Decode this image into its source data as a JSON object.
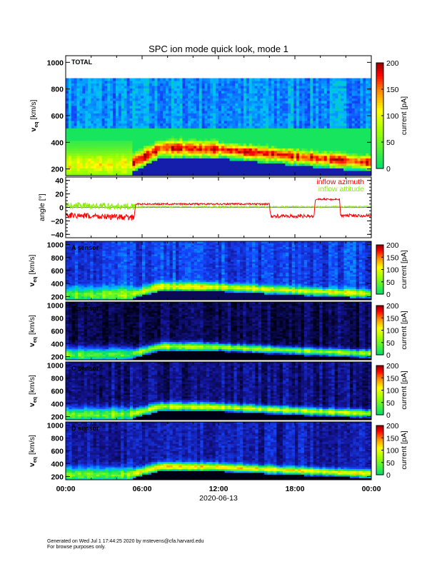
{
  "chart_data": {
    "type": "heatmap",
    "title": "SPC ion mode quick look, mode 1",
    "xlabel": "2020-06-13",
    "x_ticks": [
      "00:00",
      "06:00",
      "12:00",
      "18:00",
      "00:00"
    ],
    "xlim_hours": [
      0,
      24
    ],
    "panels": [
      {
        "label": "TOTAL",
        "ylabel": "v",
        "ylabel_sub": "eq",
        "ylabel_unit": " [km/s]",
        "ylim": [
          150,
          1050
        ],
        "yticks": [
          200,
          400,
          600,
          800,
          1000
        ],
        "cbar_label": "current [pA]",
        "cbar_ticks": [
          0,
          50,
          100,
          150,
          200
        ],
        "background": -0.3,
        "peak_amp": 0.9,
        "data_ceiling": 880
      },
      {
        "label": "A sensor",
        "ylabel": "v",
        "ylabel_sub": "eq",
        "ylabel_unit": " [km/s]",
        "ylim": [
          150,
          1050
        ],
        "yticks": [
          200,
          400,
          600,
          800,
          1000
        ],
        "cbar_label": "current [pA]",
        "cbar_ticks": [
          0,
          50,
          100,
          150,
          200
        ],
        "background": -0.5,
        "peak_amp": 0.5,
        "data_ceiling": 1050
      },
      {
        "label": "B sensor",
        "ylabel": "v",
        "ylabel_sub": "eq",
        "ylabel_unit": " [km/s]",
        "ylim": [
          150,
          1050
        ],
        "yticks": [
          200,
          400,
          600,
          800,
          1000
        ],
        "cbar_label": "current [pA]",
        "cbar_ticks": [
          0,
          50,
          100,
          150,
          200
        ],
        "background": -0.85,
        "peak_amp": 0.35,
        "data_ceiling": 1050
      },
      {
        "label": "C sensor",
        "ylabel": "v",
        "ylabel_sub": "eq",
        "ylabel_unit": " [km/s]",
        "ylim": [
          150,
          1050
        ],
        "yticks": [
          200,
          400,
          600,
          800,
          1000
        ],
        "cbar_label": "current [pA]",
        "cbar_ticks": [
          0,
          50,
          100,
          150,
          200
        ],
        "background": -0.75,
        "peak_amp": 0.45,
        "data_ceiling": 1050
      },
      {
        "label": "D sensor",
        "ylabel": "v",
        "ylabel_sub": "eq",
        "ylabel_unit": " [km/s]",
        "ylim": [
          150,
          1050
        ],
        "yticks": [
          200,
          400,
          600,
          800,
          1000
        ],
        "cbar_label": "current [pA]",
        "cbar_ticks": [
          0,
          50,
          100,
          150,
          200
        ],
        "background": -0.65,
        "peak_amp": 0.55,
        "data_ceiling": 1050
      }
    ],
    "peak_velocity_kms": {
      "t_hours": [
        0,
        5,
        7.5,
        12,
        20,
        24
      ],
      "v": [
        230,
        235,
        360,
        350,
        280,
        250
      ]
    },
    "angle_panel": {
      "ylabel": "angle [°]",
      "ylim": [
        -45,
        45
      ],
      "yticks": [
        -40,
        -20,
        0,
        20,
        40
      ],
      "series": [
        {
          "name": "inflow azimuth",
          "color": "#ff0000",
          "t_hours": [
            0,
            5.4,
            5.5,
            16,
            16.1,
            19.5,
            19.6,
            21.5,
            21.6,
            24
          ],
          "values": [
            -12,
            -15,
            5,
            5,
            -13,
            -13,
            12,
            12,
            -12,
            -12
          ]
        },
        {
          "name": "inflow attitude",
          "color": "#88ee00",
          "t_hours": [
            0,
            5.5,
            24
          ],
          "values": [
            3,
            1,
            1
          ]
        }
      ]
    }
  },
  "footer": {
    "line1": "Generated on Wed Jul  1 17:44:25 2020 by mstevens@cfa.harvard.edu",
    "line2": "For browse purposes only."
  }
}
